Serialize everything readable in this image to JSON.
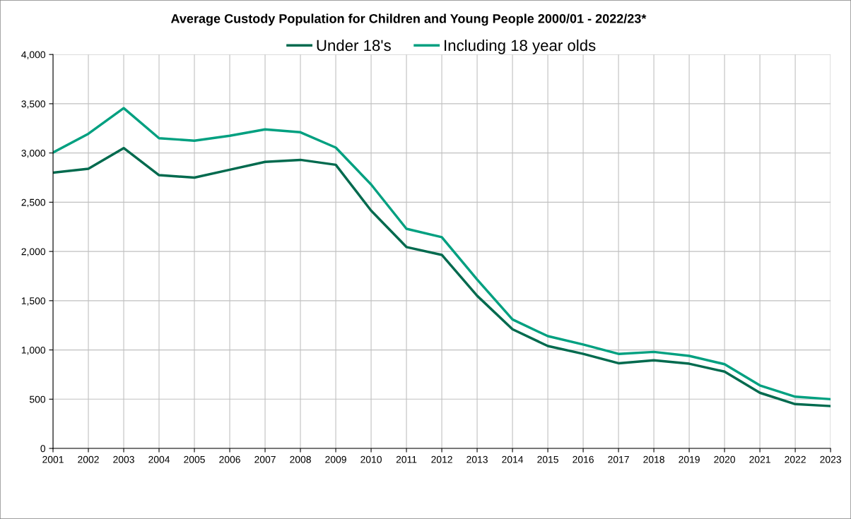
{
  "chart_data": {
    "type": "line",
    "title": "Average Custody Population for Children and Young People 2000/01 - 2022/23*",
    "categories": [
      "2001",
      "2002",
      "2003",
      "2004",
      "2005",
      "2006",
      "2007",
      "2008",
      "2009",
      "2010",
      "2011",
      "2012",
      "2013",
      "2014",
      "2015",
      "2016",
      "2017",
      "2018",
      "2019",
      "2020",
      "2021",
      "2022",
      "2023"
    ],
    "series": [
      {
        "name": "Under 18's",
        "color": "#006a4e",
        "values": [
          2800,
          2840,
          3050,
          2775,
          2750,
          2830,
          2910,
          2930,
          2880,
          2415,
          2045,
          1965,
          1550,
          1210,
          1040,
          960,
          865,
          895,
          860,
          780,
          565,
          450,
          430
        ]
      },
      {
        "name": "Including 18 year olds",
        "color": "#00a080",
        "values": [
          3005,
          3195,
          3455,
          3150,
          3125,
          3175,
          3240,
          3210,
          3055,
          2680,
          2230,
          2145,
          1715,
          1310,
          1140,
          1055,
          960,
          980,
          940,
          855,
          640,
          525,
          500
        ]
      }
    ],
    "ylim": [
      0,
      4000
    ],
    "yticks": [
      0,
      500,
      {
        "value": 1000,
        "label": "1,000"
      },
      {
        "value": 1500,
        "label": "1,500"
      },
      {
        "value": 2000,
        "label": "2,000"
      },
      {
        "value": 2500,
        "label": "2,500"
      },
      {
        "value": 3000,
        "label": "3,000"
      },
      {
        "value": 3500,
        "label": "3,500"
      },
      {
        "value": 4000,
        "label": "4,000"
      }
    ],
    "grid": true,
    "legend": "top",
    "marker": "none",
    "line_style": "solid"
  }
}
